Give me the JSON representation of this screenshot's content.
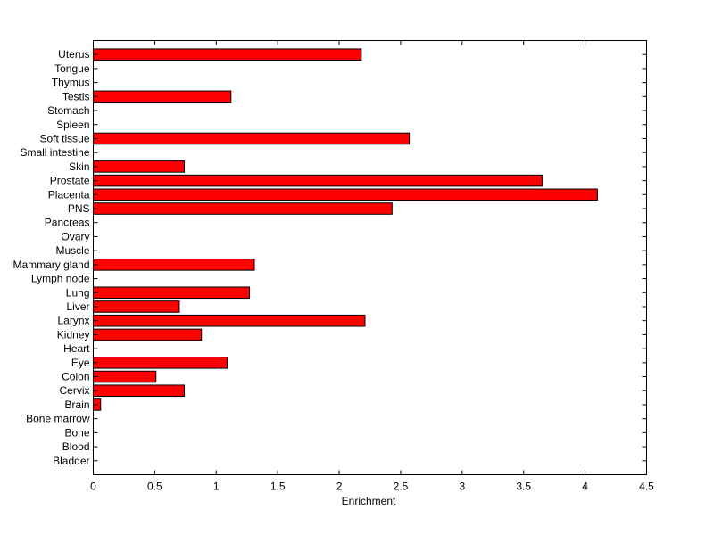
{
  "chart_data": {
    "type": "bar",
    "orientation": "horizontal",
    "title": "",
    "xlabel": "Enrichment",
    "ylabel": "",
    "xlim": [
      0,
      4.5
    ],
    "xticks": [
      "0",
      "0.5",
      "1",
      "1.5",
      "2",
      "2.5",
      "3",
      "3.5",
      "4",
      "4.5"
    ],
    "grid": false,
    "bar_color": "#ff0000",
    "categories": [
      "Uterus",
      "Tongue",
      "Thymus",
      "Testis",
      "Stomach",
      "Spleen",
      "Soft tissue",
      "Small intestine",
      "Skin",
      "Prostate",
      "Placenta",
      "PNS",
      "Pancreas",
      "Ovary",
      "Muscle",
      "Mammary gland",
      "Lymph node",
      "Lung",
      "Liver",
      "Larynx",
      "Kidney",
      "Heart",
      "Eye",
      "Colon",
      "Cervix",
      "Brain",
      "Bone marrow",
      "Bone",
      "Blood",
      "Bladder"
    ],
    "values": [
      2.18,
      0,
      0,
      1.12,
      0,
      0,
      2.57,
      0,
      0.74,
      3.65,
      4.1,
      2.43,
      0,
      0,
      0,
      1.31,
      0,
      1.27,
      0.7,
      2.21,
      0.88,
      0,
      1.09,
      0.51,
      0.74,
      0.06,
      0,
      0,
      0,
      0
    ]
  }
}
